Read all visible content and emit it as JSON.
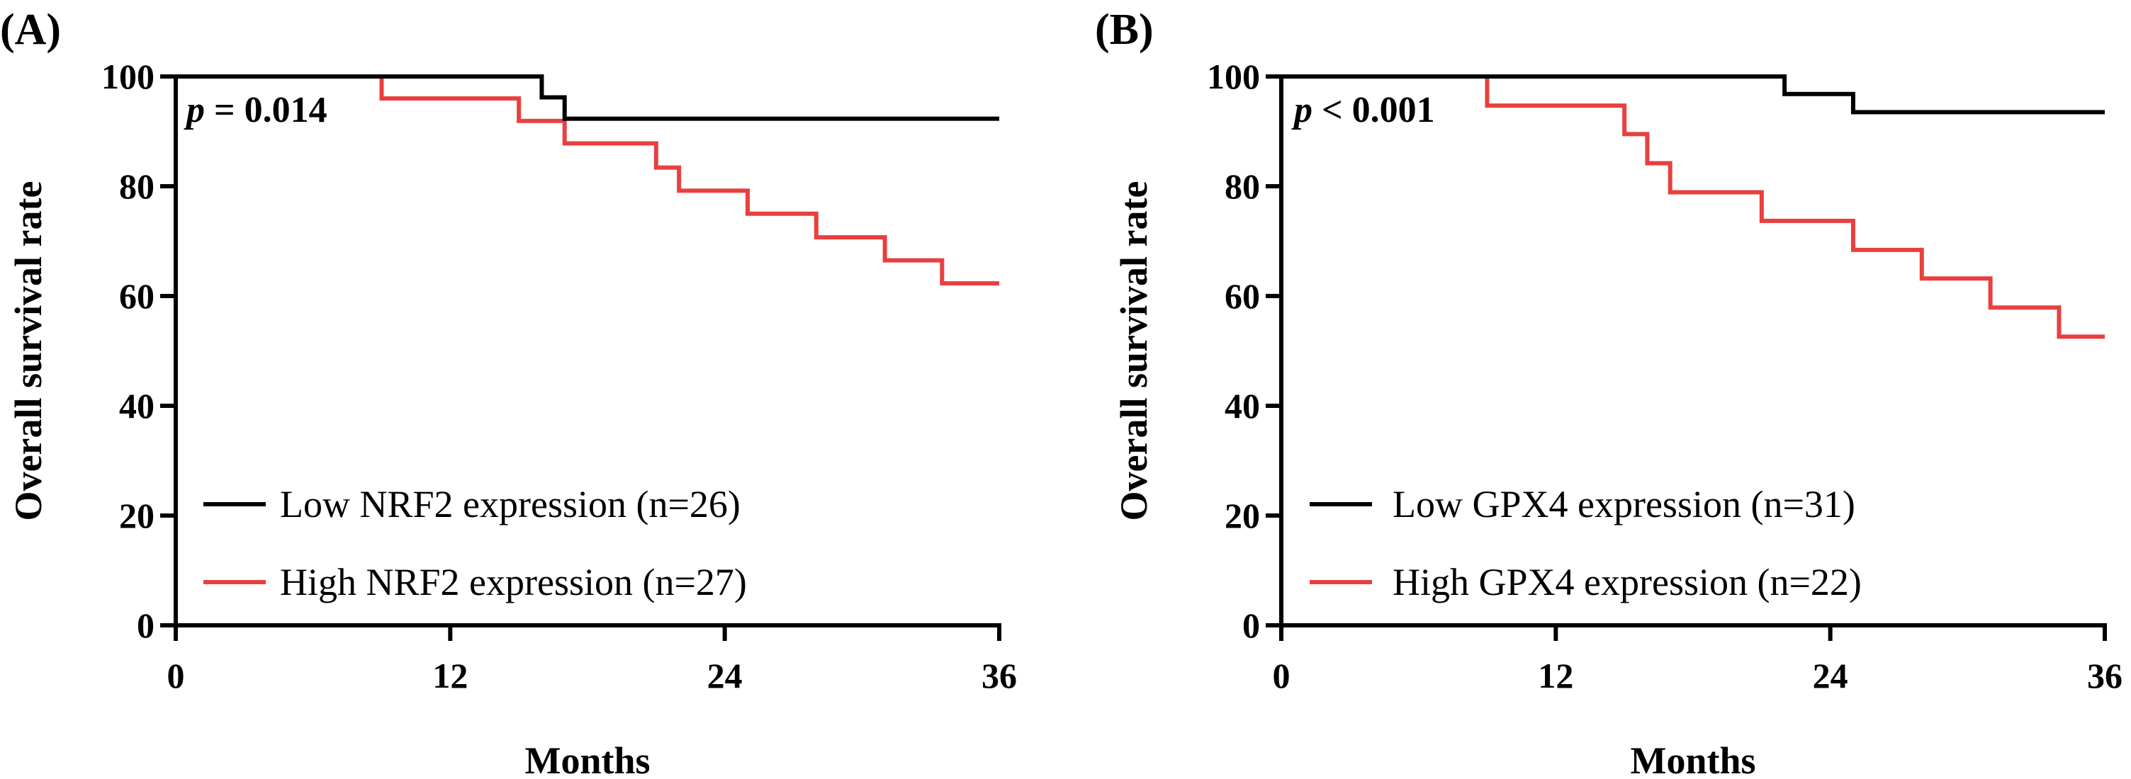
{
  "chart_data": [
    {
      "type": "line",
      "panel_label": "(A)",
      "annotation": {
        "p_symbol": "p",
        "p_text": " = 0.014"
      },
      "xlabel": "Months",
      "ylabel": "Overall survival rate",
      "xlim": [
        0,
        36
      ],
      "ylim": [
        0,
        100
      ],
      "xticks": [
        0,
        12,
        24,
        36
      ],
      "yticks": [
        0,
        20,
        40,
        60,
        80,
        100
      ],
      "legend_position": "lower-left",
      "series": [
        {
          "name": "Low NRF2 expression (n=26)",
          "color": "#000000",
          "step": true,
          "x": [
            0,
            16,
            17,
            36
          ],
          "y": [
            100,
            96.2,
            92.3,
            92.3
          ]
        },
        {
          "name": "High NRF2 expression (n=27)",
          "color": "#e8403f",
          "step": true,
          "x": [
            0,
            9,
            15,
            17,
            21,
            22,
            25,
            28,
            31,
            33.5,
            36
          ],
          "y": [
            100,
            96,
            91.9,
            87.8,
            83.4,
            79.2,
            75,
            70.7,
            66.5,
            62.3,
            62.3
          ]
        }
      ]
    },
    {
      "type": "line",
      "panel_label": "(B)",
      "annotation": {
        "p_symbol": "p",
        "p_text": " < 0.001"
      },
      "xlabel": "Months",
      "ylabel": "Overall survival rate",
      "xlim": [
        0,
        36
      ],
      "ylim": [
        0,
        100
      ],
      "xticks": [
        0,
        12,
        24,
        36
      ],
      "yticks": [
        0,
        20,
        40,
        60,
        80,
        100
      ],
      "legend_position": "lower-left",
      "series": [
        {
          "name": "Low GPX4 expression (n=31)",
          "color": "#000000",
          "step": true,
          "x": [
            0,
            22,
            25,
            36
          ],
          "y": [
            100,
            96.8,
            93.5,
            93.5
          ]
        },
        {
          "name": "High GPX4 expression (n=22)",
          "color": "#e8403f",
          "step": true,
          "x": [
            0,
            9,
            15,
            16,
            17,
            21,
            25,
            28,
            31,
            34,
            36
          ],
          "y": [
            100,
            94.7,
            89.5,
            84.2,
            78.9,
            73.7,
            68.4,
            63.2,
            57.9,
            52.6,
            52.6
          ]
        }
      ]
    }
  ]
}
